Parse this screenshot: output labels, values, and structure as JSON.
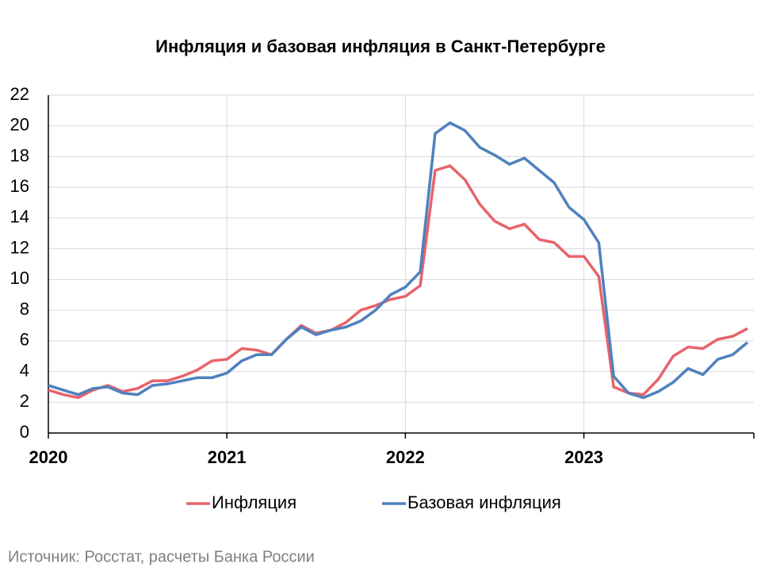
{
  "chart_data": {
    "type": "line",
    "title": "Инфляция и базовая инфляция в Санкт-Петербурге",
    "source": "Источник: Росстат, расчеты Банка России",
    "categories": [
      "2020",
      null,
      null,
      null,
      null,
      null,
      null,
      null,
      null,
      null,
      null,
      null,
      "2021",
      null,
      null,
      null,
      null,
      null,
      null,
      null,
      null,
      null,
      null,
      null,
      "2022",
      null,
      null,
      null,
      null,
      null,
      null,
      null,
      null,
      null,
      null,
      null,
      "2023",
      null,
      null,
      null,
      null,
      null,
      null,
      null,
      null,
      null,
      null,
      null
    ],
    "series": [
      {
        "name": "Инфляция",
        "color": "#e8636b",
        "values": [
          2.8,
          2.5,
          2.3,
          2.8,
          3.1,
          2.7,
          2.9,
          3.4,
          3.4,
          3.7,
          4.1,
          4.7,
          4.8,
          5.5,
          5.4,
          5.1,
          6.1,
          7.0,
          6.5,
          6.7,
          7.2,
          8.0,
          8.3,
          8.7,
          8.9,
          9.6,
          17.1,
          17.4,
          16.5,
          14.9,
          13.8,
          13.3,
          13.6,
          12.6,
          12.4,
          11.5,
          11.5,
          10.2,
          3.0,
          2.6,
          2.5,
          3.5,
          5.0,
          5.6,
          5.5,
          6.1,
          6.3,
          6.8
        ]
      },
      {
        "name": "Базовая инфляция",
        "color": "#4f81bd",
        "values": [
          3.1,
          2.8,
          2.5,
          2.9,
          3.0,
          2.6,
          2.5,
          3.1,
          3.2,
          3.4,
          3.6,
          3.6,
          3.9,
          4.7,
          5.1,
          5.1,
          6.1,
          6.9,
          6.4,
          6.7,
          6.9,
          7.3,
          8.0,
          9.0,
          9.5,
          10.5,
          19.5,
          20.2,
          19.7,
          18.6,
          18.1,
          17.5,
          17.9,
          17.1,
          16.3,
          14.7,
          13.9,
          12.4,
          3.7,
          2.6,
          2.3,
          2.7,
          3.3,
          4.2,
          3.8,
          4.8,
          5.1,
          5.9
        ]
      }
    ],
    "ylim": [
      0,
      22
    ],
    "yticks": [
      0,
      2,
      4,
      6,
      8,
      10,
      12,
      14,
      16,
      18,
      20,
      22
    ],
    "grid": true,
    "legend": "bottom"
  }
}
